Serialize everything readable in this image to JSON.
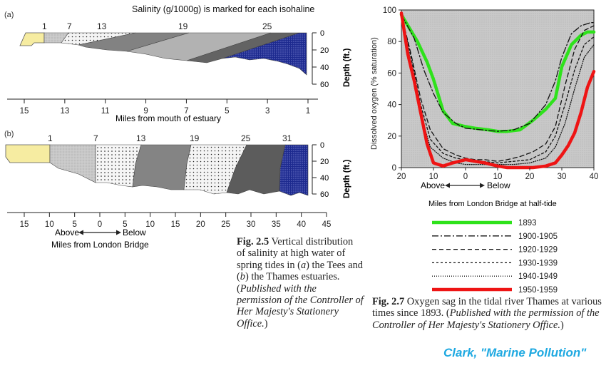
{
  "fig25": {
    "panel_a": {
      "label": "(a)",
      "title": "Salinity (g/1000g) is marked for each isohaline",
      "isohalines": [
        "1",
        "7",
        "13",
        "19",
        "25"
      ],
      "depth_ticks": [
        "0",
        "20",
        "40",
        "60"
      ],
      "depth_label": "Depth (ft.)",
      "x_ticks": [
        "15",
        "13",
        "11",
        "9",
        "7",
        "5",
        "3",
        "1"
      ],
      "x_label": "Miles from mouth of estuary"
    },
    "panel_b": {
      "label": "(b)",
      "isohalines": [
        "1",
        "7",
        "13",
        "19",
        "25",
        "31"
      ],
      "depth_ticks": [
        "0",
        "20",
        "40",
        "60"
      ],
      "depth_label": "Depth (ft.)",
      "x_ticks": [
        "15",
        "10",
        "5",
        "0",
        "5",
        "10",
        "15",
        "20",
        "25",
        "30",
        "35",
        "40",
        "45"
      ],
      "above": "Above",
      "below": "Below",
      "x_label": "Miles from London Bridge"
    },
    "caption": {
      "fig": "Fig. 2.5",
      "t1": "Vertical distribution of salinity at high water of spring tides in (",
      "a": "a",
      "t2": ") the Tees and (",
      "b": "b",
      "t3": ") the Thames estuaries. (",
      "perm": "Published with the permission of the Controller of Her Majesty's Stationery Office.",
      "t4": ")"
    }
  },
  "chart_data": {
    "type": "line",
    "title": "",
    "xlabel": "Miles from London Bridge at half-tide",
    "ylabel": "Dissolved oxygen (% saturation)",
    "x_ticks": [
      "20",
      "10",
      "0",
      "10",
      "20",
      "30",
      "40"
    ],
    "x_tick_values": [
      -20,
      -10,
      0,
      10,
      20,
      30,
      40
    ],
    "y_ticks": [
      "0",
      "20",
      "40",
      "60",
      "80",
      "100"
    ],
    "xlim": [
      -20,
      40
    ],
    "ylim": [
      0,
      100
    ],
    "above": "Above",
    "below": "Below",
    "grid": false,
    "legend_position": "below",
    "series": [
      {
        "name": "1893",
        "color": "#2ee21b",
        "width": 4.5,
        "dash": "",
        "x": [
          -20,
          -15,
          -12,
          -10,
          -7,
          -4,
          0,
          3,
          7,
          10,
          13,
          17,
          21,
          25,
          28,
          30,
          33,
          36,
          38,
          40
        ],
        "y": [
          97,
          80,
          67,
          56,
          36,
          28,
          26,
          25,
          24,
          23,
          23,
          24,
          30,
          37,
          44,
          64,
          78,
          84,
          86,
          86
        ]
      },
      {
        "name": "1900-1905",
        "color": "#111111",
        "width": 1.3,
        "dash": "9,3,2,3",
        "x": [
          -20,
          -16,
          -13,
          -10,
          -7,
          -3,
          0,
          5,
          10,
          15,
          20,
          25,
          28,
          30,
          33,
          36,
          39,
          40
        ],
        "y": [
          97,
          82,
          62,
          47,
          35,
          28,
          25,
          24,
          23,
          24,
          28,
          40,
          55,
          70,
          85,
          90,
          92,
          92
        ]
      },
      {
        "name": "1920-1929",
        "color": "#111111",
        "width": 1.3,
        "dash": "6,4",
        "x": [
          -20,
          -17,
          -14,
          -11,
          -7,
          -3,
          0,
          3,
          6,
          10,
          13,
          17,
          21,
          25,
          28,
          31,
          34,
          37,
          40
        ],
        "y": [
          97,
          72,
          44,
          24,
          12,
          8,
          6,
          5,
          5,
          4,
          5,
          7,
          10,
          15,
          26,
          52,
          75,
          87,
          90
        ]
      },
      {
        "name": "1930-1939",
        "color": "#111111",
        "width": 1.3,
        "dash": "3,3",
        "x": [
          -20,
          -17,
          -14,
          -11,
          -7,
          -3,
          0,
          5,
          10,
          15,
          20,
          25,
          28,
          31,
          34,
          37,
          40
        ],
        "y": [
          97,
          70,
          40,
          18,
          9,
          6,
          5,
          4,
          3,
          4,
          5,
          10,
          20,
          40,
          62,
          78,
          83
        ]
      },
      {
        "name": "1940-1949",
        "color": "#111111",
        "width": 1.3,
        "dash": "1,2",
        "x": [
          -20,
          -17,
          -14,
          -11,
          -7,
          -3,
          0,
          5,
          10,
          15,
          20,
          25,
          28,
          31,
          34,
          37,
          40
        ],
        "y": [
          97,
          66,
          34,
          13,
          6,
          3,
          2,
          2,
          2,
          2,
          3,
          6,
          13,
          28,
          50,
          70,
          78
        ]
      },
      {
        "name": "1950-1959",
        "color": "#ee1414",
        "width": 4.5,
        "dash": "",
        "x": [
          -20,
          -18,
          -16,
          -14,
          -12,
          -10,
          -7,
          -4,
          0,
          3,
          6,
          10,
          13,
          17,
          21,
          25,
          28,
          30,
          32,
          34,
          36,
          38,
          40
        ],
        "y": [
          98,
          72,
          55,
          35,
          15,
          3,
          1,
          3,
          5,
          4,
          3,
          1,
          0,
          0,
          0,
          1,
          3,
          8,
          14,
          22,
          35,
          51,
          61
        ]
      }
    ],
    "caption": {
      "fig": "Fig. 2.7",
      "t1": "Oxygen sag in the tidal river Thames at various times since 1893. (",
      "perm": "Published with the permission of the Controller of Her Majesty's Stationery Office.",
      "t2": ")"
    }
  },
  "credit": "Clark, \"Marine Pollution\""
}
